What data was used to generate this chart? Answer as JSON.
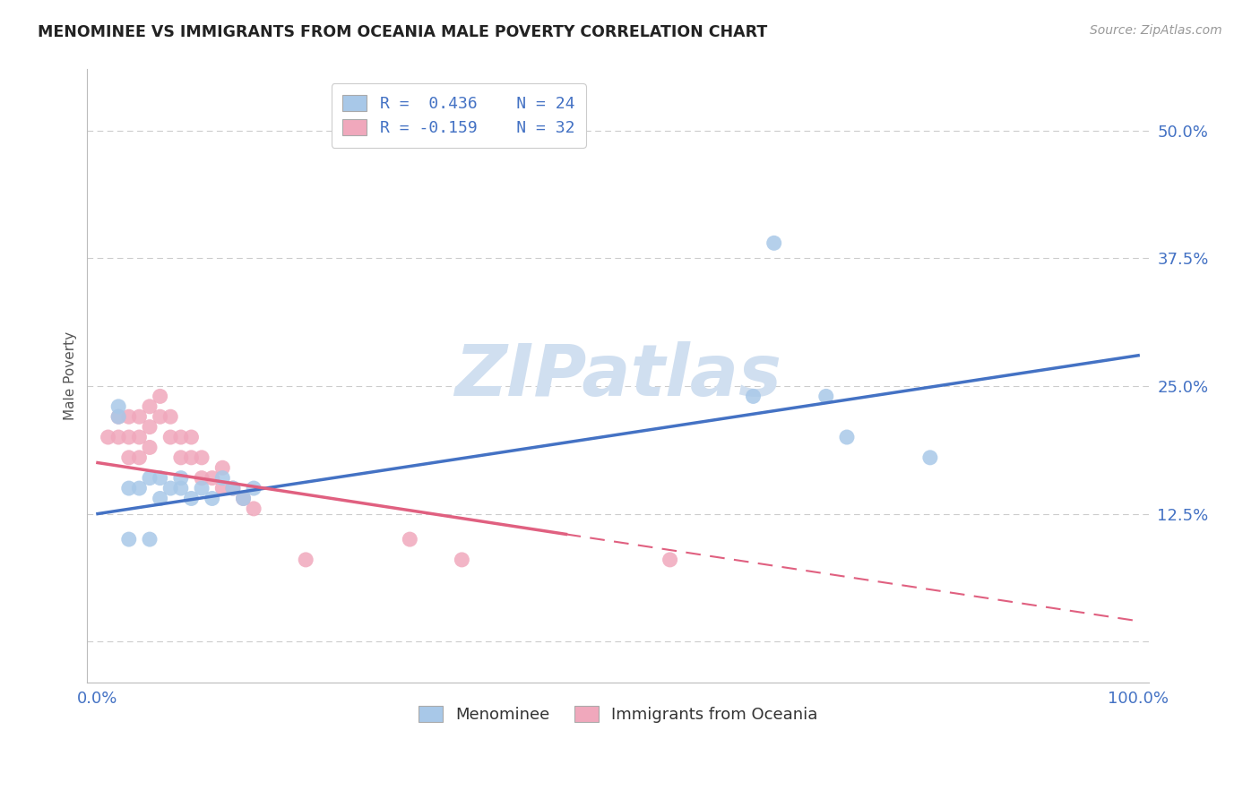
{
  "title": "MENOMINEE VS IMMIGRANTS FROM OCEANIA MALE POVERTY CORRELATION CHART",
  "source_text": "Source: ZipAtlas.com",
  "ylabel": "Male Poverty",
  "legend_blue_r": "R =  0.436",
  "legend_blue_n": "N = 24",
  "legend_pink_r": "R = -0.159",
  "legend_pink_n": "N = 32",
  "blue_color": "#A8C8E8",
  "pink_color": "#F0A8BC",
  "blue_line_color": "#4472C4",
  "pink_line_color": "#E06080",
  "watermark_color": "#D0DFF0",
  "background_color": "#FFFFFF",
  "grid_color": "#CCCCCC",
  "blue_x": [
    2,
    2,
    3,
    4,
    5,
    6,
    6,
    7,
    8,
    8,
    9,
    10,
    11,
    12,
    13,
    14,
    15,
    63,
    65,
    70,
    72,
    80,
    3,
    5
  ],
  "blue_y": [
    23,
    22,
    15,
    15,
    16,
    14,
    16,
    15,
    15,
    16,
    14,
    15,
    14,
    16,
    15,
    14,
    15,
    24,
    39,
    24,
    20,
    18,
    10,
    10
  ],
  "pink_x": [
    1,
    2,
    2,
    3,
    3,
    3,
    4,
    4,
    4,
    5,
    5,
    5,
    6,
    6,
    7,
    7,
    8,
    8,
    9,
    9,
    10,
    10,
    11,
    12,
    12,
    13,
    14,
    15,
    30,
    35,
    55,
    20
  ],
  "pink_y": [
    20,
    20,
    22,
    18,
    20,
    22,
    18,
    20,
    22,
    19,
    21,
    23,
    22,
    24,
    20,
    22,
    18,
    20,
    18,
    20,
    16,
    18,
    16,
    15,
    17,
    15,
    14,
    13,
    10,
    8,
    8,
    8
  ],
  "blue_line_x0": 0,
  "blue_line_x1": 100,
  "blue_line_y0": 12.5,
  "blue_line_y1": 28.0,
  "pink_solid_x0": 0,
  "pink_solid_x1": 45,
  "pink_solid_y0": 17.5,
  "pink_solid_y1": 10.5,
  "pink_dash_x0": 45,
  "pink_dash_x1": 100,
  "pink_dash_y0": 10.5,
  "pink_dash_y1": 2.0,
  "xlim": [
    -1,
    101
  ],
  "ylim": [
    -4,
    56
  ],
  "ytick_vals": [
    0,
    12.5,
    25.0,
    37.5,
    50.0
  ],
  "ytick_labels": [
    "",
    "12.5%",
    "25.0%",
    "37.5%",
    "50.0%"
  ],
  "xtick_positions": [
    0,
    12.5,
    25,
    37.5,
    50,
    62.5,
    75,
    87.5,
    100
  ],
  "xtick_labels": [
    "0.0%",
    "",
    "",
    "",
    "",
    "",
    "",
    "",
    "100.0%"
  ]
}
